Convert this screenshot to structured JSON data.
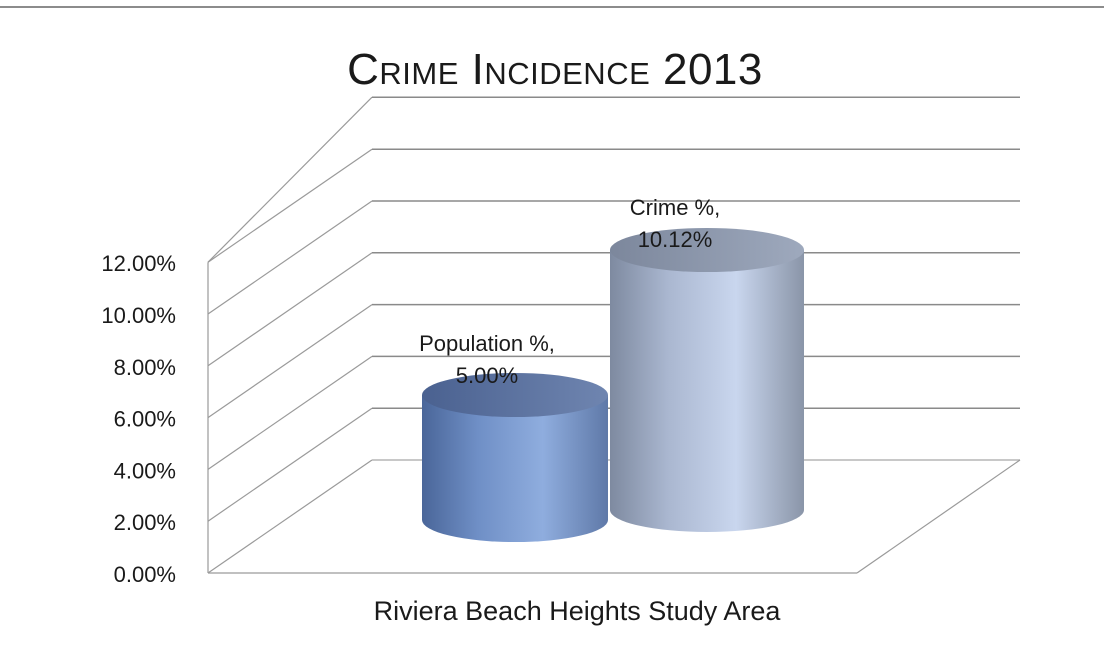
{
  "chart_data": {
    "type": "bar",
    "title": "Crime Incidence 2013",
    "categories": [
      "Riviera Beach Heights Study Area"
    ],
    "series": [
      {
        "name": "Population %",
        "values": [
          5.0
        ],
        "label": "Population %,",
        "value_label": "5.00%",
        "color": "#7b9bcf"
      },
      {
        "name": "Crime %",
        "values": [
          10.12
        ],
        "label": "Crime %,",
        "value_label": "10.12%",
        "color": "#b5c3dc"
      }
    ],
    "ylim": [
      0,
      12
    ],
    "yticks": [
      "0.00%",
      "2.00%",
      "4.00%",
      "6.00%",
      "8.00%",
      "10.00%",
      "12.00%"
    ],
    "xlabel": "",
    "ylabel": "",
    "grid": true,
    "legend": "none"
  }
}
